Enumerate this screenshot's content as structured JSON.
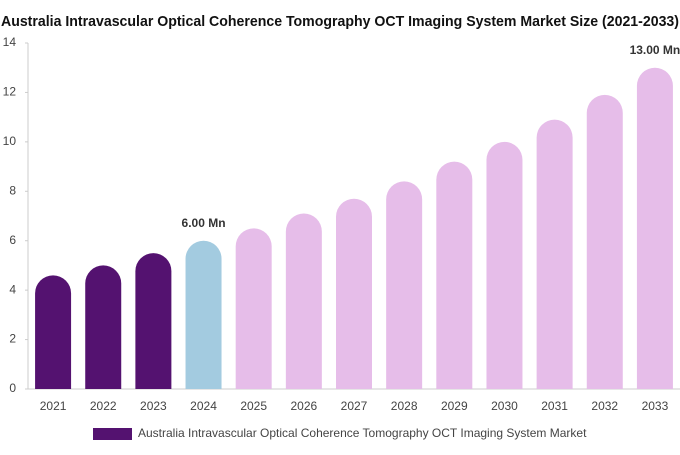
{
  "chart_data": {
    "type": "bar",
    "title": "Australia Intravascular Optical Coherence Tomography OCT Imaging System Market Size (2021-2033)",
    "categories": [
      "2021",
      "2022",
      "2023",
      "2024",
      "2025",
      "2026",
      "2027",
      "2028",
      "2029",
      "2030",
      "2031",
      "2032",
      "2033"
    ],
    "series": [
      {
        "name": "Australia Intravascular Optical Coherence Tomography OCT Imaging System Market",
        "color": "#541270",
        "colors": [
          "#541270",
          "#541270",
          "#541270",
          "#a3cbe0",
          "#e6bde9",
          "#e6bde9",
          "#e6bde9",
          "#e6bde9",
          "#e6bde9",
          "#e6bde9",
          "#e6bde9",
          "#e6bde9",
          "#e6bde9"
        ],
        "values": [
          4.6,
          5.0,
          5.5,
          6.0,
          6.5,
          7.1,
          7.7,
          8.4,
          9.2,
          10.0,
          10.9,
          11.9,
          13.0
        ],
        "value_labels": [
          null,
          null,
          null,
          "6.00 Mn",
          null,
          null,
          null,
          null,
          null,
          null,
          null,
          null,
          "13.00 Mn"
        ]
      }
    ],
    "ylim": [
      0,
      14
    ],
    "yticks": [
      0,
      2,
      4,
      6,
      8,
      10,
      12,
      14
    ],
    "legend": "bottom"
  }
}
